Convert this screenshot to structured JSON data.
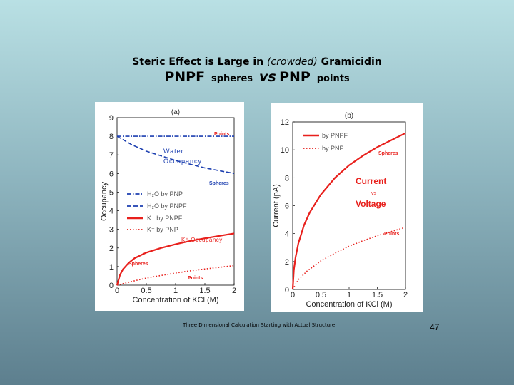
{
  "title": {
    "line1_pre": "Steric Effect is Large in ",
    "line1_italic": "(crowded)",
    "line1_post": " Gramicidin",
    "pnpf": "PNPF",
    "spheres": "spheres",
    "vs": "vs",
    "pnp": "PNP",
    "points": "points"
  },
  "footer": "Three Dimensional Calculation Starting with Actual Structure",
  "page_number": "47",
  "colors": {
    "red": "#e8201c",
    "blue": "#1c3fb0"
  },
  "chart_data": [
    {
      "type": "line",
      "panel_label": "(a)",
      "xlabel": "Concentration of KCl (M)",
      "ylabel": "Occupancy",
      "xlim": [
        0,
        2
      ],
      "ylim": [
        0,
        9
      ],
      "x_ticks": [
        "0",
        "0.5",
        "1",
        "1.5",
        "2"
      ],
      "y_ticks": [
        "0",
        "1",
        "2",
        "3",
        "4",
        "5",
        "6",
        "7",
        "8",
        "9"
      ],
      "legend": [
        "H₂O by PNP",
        "H₂O by PNPF",
        "K⁺ by PNPF",
        "K⁺ by PNP"
      ],
      "series": [
        {
          "name": "H₂O by PNP",
          "color": "#1c3fb0",
          "style": "dashdot",
          "x": [
            0,
            0.5,
            1,
            1.5,
            2
          ],
          "values": [
            8.0,
            8.0,
            8.0,
            8.0,
            8.0
          ]
        },
        {
          "name": "H₂O by PNPF",
          "color": "#1c3fb0",
          "style": "dashed",
          "x": [
            0,
            0.25,
            0.5,
            0.75,
            1,
            1.25,
            1.5,
            1.75,
            2
          ],
          "values": [
            8.0,
            7.55,
            7.2,
            6.95,
            6.7,
            6.5,
            6.3,
            6.15,
            6.0
          ]
        },
        {
          "name": "K⁺ by PNPF",
          "color": "#e8201c",
          "style": "solid",
          "x": [
            0,
            0.05,
            0.1,
            0.2,
            0.3,
            0.5,
            0.75,
            1,
            1.25,
            1.5,
            1.75,
            2
          ],
          "values": [
            0,
            0.55,
            0.85,
            1.2,
            1.45,
            1.75,
            2.0,
            2.2,
            2.38,
            2.52,
            2.65,
            2.78
          ]
        },
        {
          "name": "K⁺ by PNP",
          "color": "#e8201c",
          "style": "dotted",
          "x": [
            0,
            0.25,
            0.5,
            0.75,
            1,
            1.25,
            1.5,
            1.75,
            2
          ],
          "values": [
            0,
            0.2,
            0.38,
            0.52,
            0.65,
            0.77,
            0.87,
            0.96,
            1.05
          ]
        }
      ],
      "annotations": {
        "points_top": "Points",
        "water_l1": "Water",
        "water_l2": "Occupancy",
        "spheres_mid": "Spheres",
        "k_occupancy": "K⁺ Occupancy",
        "spheres_low": "Spheres",
        "points_low": "Points"
      }
    },
    {
      "type": "line",
      "panel_label": "(b)",
      "xlabel": "Concentration of KCl (M)",
      "ylabel": "Current (pA)",
      "xlim": [
        0,
        2
      ],
      "ylim": [
        0,
        12
      ],
      "x_ticks": [
        "0",
        "0.5",
        "1",
        "1.5",
        "2"
      ],
      "y_ticks": [
        "0",
        "2",
        "4",
        "6",
        "8",
        "10",
        "12"
      ],
      "legend": [
        "by PNPF",
        "by PNP"
      ],
      "series": [
        {
          "name": "by PNPF",
          "color": "#e8201c",
          "style": "solid",
          "x": [
            0,
            0.02,
            0.05,
            0.1,
            0.2,
            0.3,
            0.5,
            0.75,
            1,
            1.25,
            1.5,
            1.75,
            2
          ],
          "values": [
            0,
            1.4,
            2.3,
            3.3,
            4.6,
            5.5,
            6.8,
            8.0,
            8.9,
            9.6,
            10.2,
            10.7,
            11.2
          ]
        },
        {
          "name": "by PNP",
          "color": "#e8201c",
          "style": "dotted",
          "x": [
            0,
            0.1,
            0.25,
            0.5,
            0.75,
            1,
            1.25,
            1.5,
            1.75,
            2
          ],
          "values": [
            0,
            0.7,
            1.3,
            2.05,
            2.6,
            3.1,
            3.5,
            3.85,
            4.15,
            4.45
          ]
        }
      ],
      "annotations": {
        "spheres": "Spheres",
        "current": "Current",
        "vs": "vs",
        "voltage": "Voltage",
        "points": "Points"
      }
    }
  ]
}
